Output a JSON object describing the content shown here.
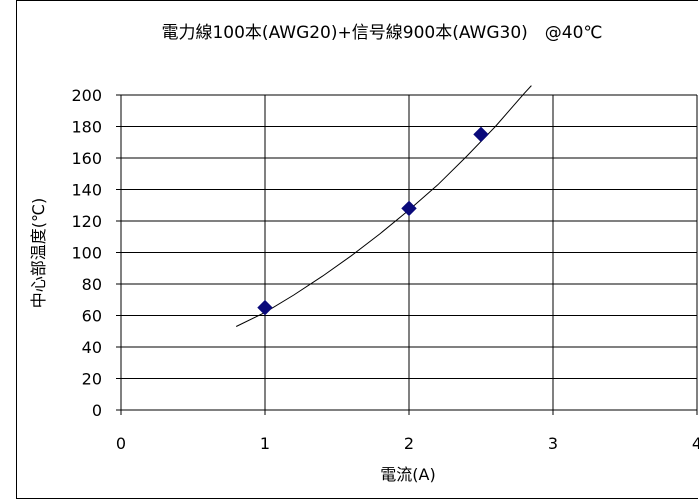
{
  "chart_data": {
    "type": "scatter",
    "title": "電力線100本(AWG20)+信号線900本(AWG30)　@40℃",
    "xlabel": "電流(A)",
    "ylabel": "中心部温度(℃)",
    "xlim": [
      0,
      4
    ],
    "ylim": [
      0,
      200
    ],
    "x_ticks": [
      "0",
      "1",
      "2",
      "3",
      "4"
    ],
    "y_ticks": [
      "0",
      "20",
      "40",
      "60",
      "80",
      "100",
      "120",
      "140",
      "160",
      "180",
      "200"
    ],
    "grid": true,
    "legend": "none",
    "series": [
      {
        "marker": "diamond",
        "color": "#0A0A7A",
        "points": [
          {
            "x": 1.0,
            "y": 65
          },
          {
            "x": 2.0,
            "y": 128
          },
          {
            "x": 2.5,
            "y": 175
          }
        ]
      }
    ],
    "trendline": {
      "color": "#000000",
      "points": [
        {
          "x": 0.8,
          "y": 53
        },
        {
          "x": 1.0,
          "y": 62
        },
        {
          "x": 1.2,
          "y": 73
        },
        {
          "x": 1.4,
          "y": 85
        },
        {
          "x": 1.6,
          "y": 98
        },
        {
          "x": 1.8,
          "y": 112
        },
        {
          "x": 2.0,
          "y": 127
        },
        {
          "x": 2.2,
          "y": 143
        },
        {
          "x": 2.4,
          "y": 161
        },
        {
          "x": 2.6,
          "y": 180
        },
        {
          "x": 2.8,
          "y": 201
        },
        {
          "x": 2.85,
          "y": 206
        }
      ]
    }
  }
}
